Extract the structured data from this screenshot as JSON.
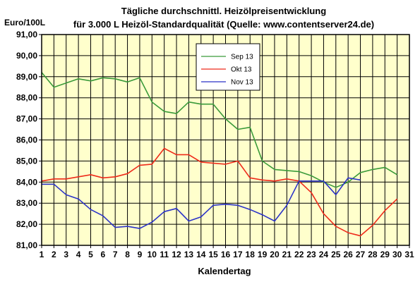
{
  "chart_data": {
    "type": "line",
    "title": "Tägliche durchschnittl. Heizölpreisentwicklung",
    "subtitle": "für 3.000 L Heizöl-Standardqualität (Quelle: www.contentserver24.de)",
    "ylabel": "Euro/100L",
    "xlabel": "Kalendertag",
    "ylim": [
      81,
      91
    ],
    "xlim": [
      1,
      31
    ],
    "y_ticks": [
      "81,00",
      "82,00",
      "83,00",
      "84,00",
      "85,00",
      "86,00",
      "87,00",
      "88,00",
      "89,00",
      "90,00",
      "91,00"
    ],
    "y_tick_values": [
      81,
      82,
      83,
      84,
      85,
      86,
      87,
      88,
      89,
      90,
      91
    ],
    "x_ticks": [
      "1",
      "2",
      "3",
      "4",
      "5",
      "6",
      "7",
      "8",
      "9",
      "10",
      "11",
      "12",
      "13",
      "14",
      "15",
      "16",
      "17",
      "18",
      "19",
      "20",
      "21",
      "22",
      "23",
      "24",
      "25",
      "26",
      "27",
      "28",
      "29",
      "30",
      "31"
    ],
    "grid": true,
    "legend_position": "top-center",
    "plot_background": "#ffffcc",
    "series": [
      {
        "name": "Sep 13",
        "color": "#3a9a3a",
        "x": [
          1,
          2,
          3,
          4,
          5,
          6,
          7,
          8,
          9,
          10,
          11,
          12,
          13,
          14,
          15,
          16,
          17,
          18,
          19,
          20,
          21,
          22,
          23,
          24,
          25,
          26,
          27,
          28,
          29,
          30
        ],
        "values": [
          89.2,
          88.5,
          88.7,
          88.9,
          88.8,
          88.95,
          88.9,
          88.75,
          88.95,
          87.8,
          87.35,
          87.25,
          87.8,
          87.7,
          87.7,
          87.0,
          86.5,
          86.6,
          85.0,
          84.6,
          84.55,
          84.5,
          84.3,
          84.0,
          83.75,
          84.0,
          84.45,
          84.6,
          84.7,
          84.35
        ]
      },
      {
        "name": "Okt 13",
        "color": "#ee2a1a",
        "x": [
          1,
          2,
          3,
          4,
          5,
          6,
          7,
          8,
          9,
          10,
          11,
          12,
          13,
          14,
          15,
          16,
          17,
          18,
          19,
          20,
          21,
          22,
          23,
          24,
          25,
          26,
          27,
          28,
          29,
          30
        ],
        "values": [
          84.05,
          84.15,
          84.15,
          84.25,
          84.35,
          84.2,
          84.25,
          84.4,
          84.8,
          84.85,
          85.6,
          85.3,
          85.3,
          84.95,
          84.9,
          84.85,
          85.0,
          84.2,
          84.1,
          84.05,
          84.15,
          84.05,
          83.5,
          82.5,
          81.9,
          81.6,
          81.45,
          81.95,
          82.65,
          83.2
        ]
      },
      {
        "name": "Nov 13",
        "color": "#2a32c8",
        "x": [
          1,
          2,
          3,
          4,
          5,
          6,
          7,
          8,
          9,
          10,
          11,
          12,
          13,
          14,
          15,
          16,
          17,
          18,
          19,
          20,
          21,
          22,
          23,
          24,
          25,
          26,
          27
        ],
        "values": [
          83.9,
          83.9,
          83.4,
          83.2,
          82.7,
          82.4,
          81.85,
          81.9,
          81.8,
          82.1,
          82.6,
          82.75,
          82.15,
          82.35,
          82.9,
          82.95,
          82.9,
          82.7,
          82.45,
          82.15,
          82.9,
          84.05,
          84.05,
          84.05,
          83.4,
          84.2,
          84.1
        ]
      }
    ]
  }
}
